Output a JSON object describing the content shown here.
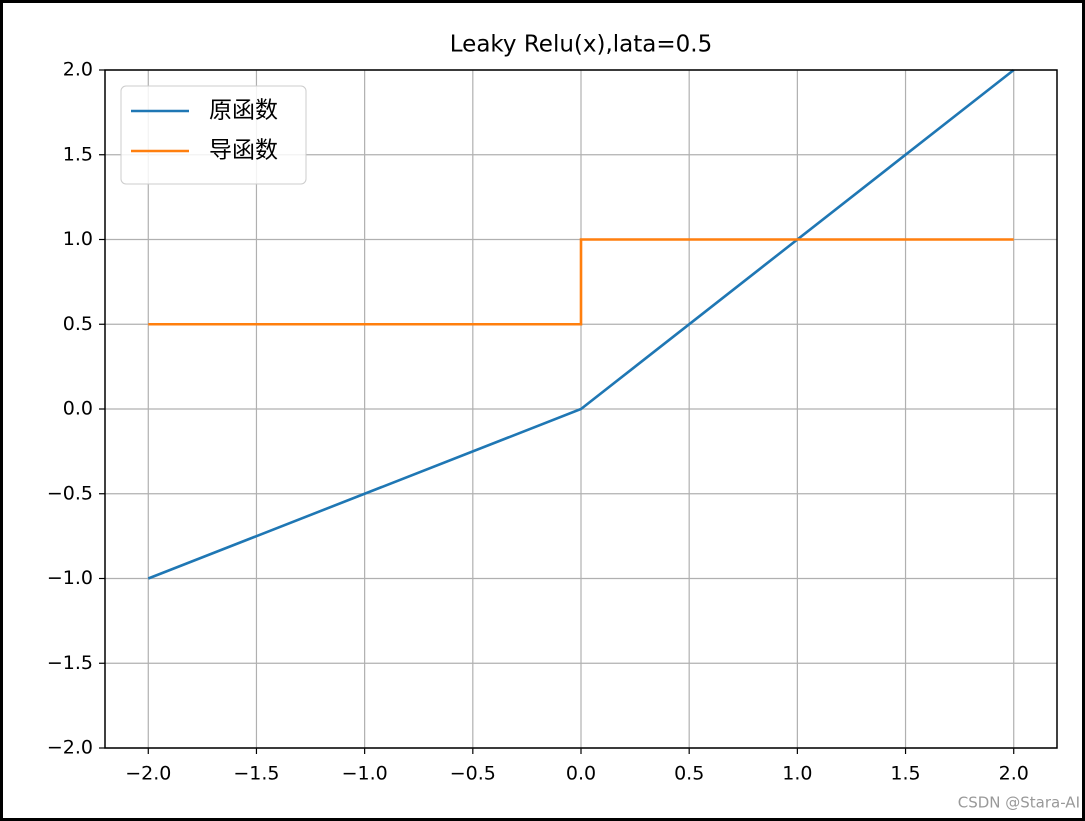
{
  "chart_data": {
    "type": "line",
    "title": "Leaky Relu(x),lata=0.5",
    "x": [
      -2,
      0,
      0,
      2
    ],
    "series": [
      {
        "name": "原函数",
        "color": "#1f77b4",
        "values": [
          -1,
          0,
          0,
          2
        ]
      },
      {
        "name": "导函数",
        "color": "#ff7f0e",
        "values": [
          0.5,
          0.5,
          1,
          1
        ]
      }
    ],
    "xlim": [
      -2.2,
      2.2
    ],
    "ylim": [
      -2,
      2
    ],
    "xticks": [
      {
        "value": -2,
        "label": "−2.0"
      },
      {
        "value": -1.5,
        "label": "−1.5"
      },
      {
        "value": -1,
        "label": "−1.0"
      },
      {
        "value": -0.5,
        "label": "−0.5"
      },
      {
        "value": 0,
        "label": "0.0"
      },
      {
        "value": 0.5,
        "label": "0.5"
      },
      {
        "value": 1,
        "label": "1.0"
      },
      {
        "value": 1.5,
        "label": "1.5"
      },
      {
        "value": 2,
        "label": "2.0"
      }
    ],
    "yticks": [
      {
        "value": -2,
        "label": "−2.0"
      },
      {
        "value": -1.5,
        "label": "−1.5"
      },
      {
        "value": -1,
        "label": "−1.0"
      },
      {
        "value": -0.5,
        "label": "−0.5"
      },
      {
        "value": 0,
        "label": "0.0"
      },
      {
        "value": 0.5,
        "label": "0.5"
      },
      {
        "value": 1,
        "label": "1.0"
      },
      {
        "value": 1.5,
        "label": "1.5"
      },
      {
        "value": 2,
        "label": "2.0"
      }
    ],
    "grid": true,
    "legend": "upper left",
    "watermark": "CSDN @Stara-AI"
  }
}
